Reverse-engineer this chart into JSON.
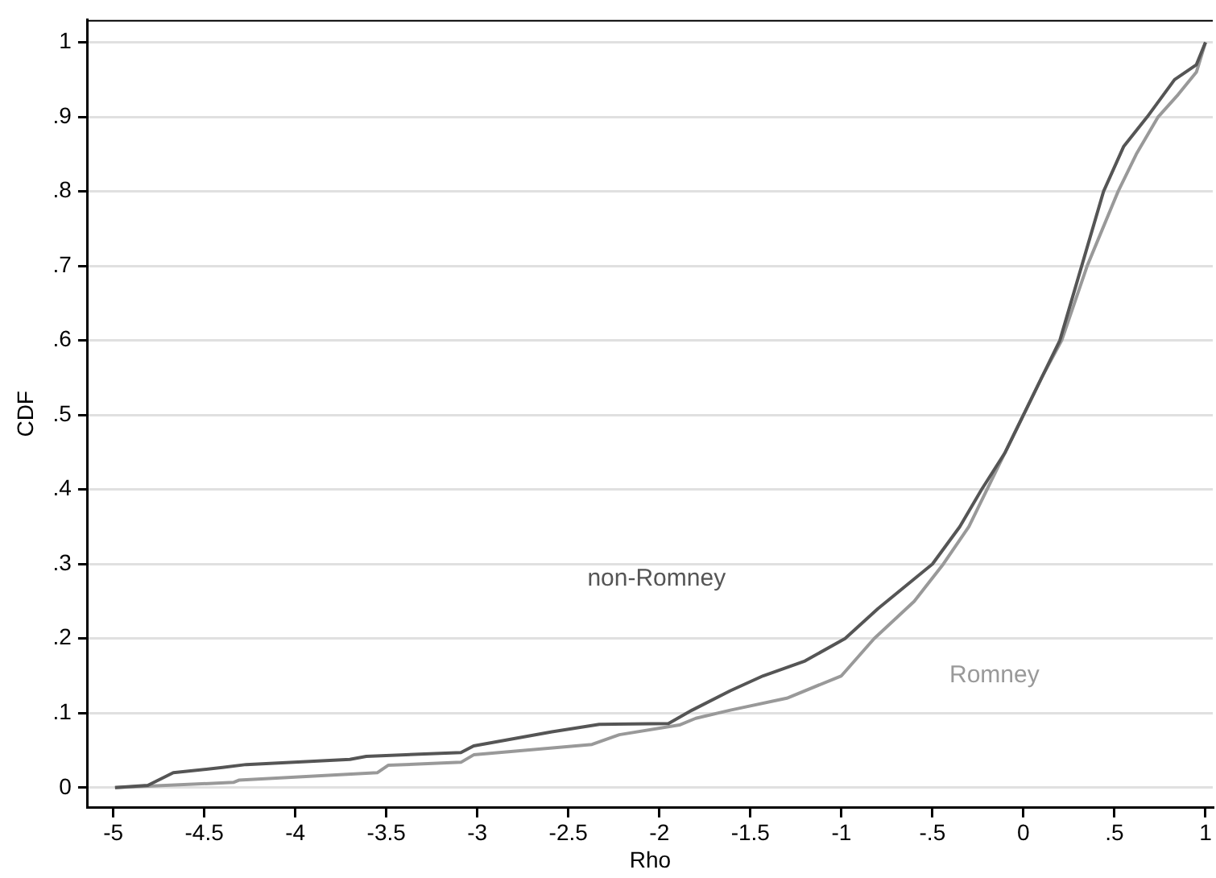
{
  "chart_data": {
    "type": "line",
    "xlabel": "Rho",
    "ylabel": "CDF",
    "xlim": [
      -5.14,
      1.04
    ],
    "xticks": [
      -5,
      -4.5,
      -4,
      -3.5,
      -3,
      -2.5,
      -2,
      -1.5,
      -1,
      {
        "value": -0.5,
        "label": "-.5"
      },
      0,
      {
        "value": 0.5,
        "label": ".5"
      },
      1
    ],
    "ylim": [
      -0.027,
      1.03
    ],
    "yticks": [
      0,
      {
        "value": 0.1,
        "label": ".1"
      },
      {
        "value": 0.2,
        "label": ".2"
      },
      {
        "value": 0.3,
        "label": ".3"
      },
      {
        "value": 0.4,
        "label": ".4"
      },
      {
        "value": 0.5,
        "label": ".5"
      },
      {
        "value": 0.6,
        "label": ".6"
      },
      {
        "value": 0.7,
        "label": ".7"
      },
      {
        "value": 0.8,
        "label": ".8"
      },
      {
        "value": 0.9,
        "label": ".9"
      },
      1
    ],
    "grid": "y",
    "legend": false,
    "marker": "none",
    "line_style": "solid",
    "series": [
      {
        "name": "non-Romney",
        "color": "#555555",
        "x": [
          -4.99,
          -4.81,
          -4.67,
          -4.4,
          -4.27,
          -3.7,
          -3.61,
          -3.09,
          -3.02,
          -2.59,
          -2.33,
          -1.95,
          -1.82,
          -1.61,
          -1.43,
          -1.2,
          -0.98,
          -0.8,
          -0.6,
          -0.5,
          -0.35,
          -0.23,
          -0.1,
          0.0,
          0.1,
          0.2,
          0.32,
          0.44,
          0.55,
          0.68,
          0.83,
          0.95,
          1.0
        ],
        "values": [
          0,
          0.003,
          0.02,
          0.027,
          0.031,
          0.038,
          0.042,
          0.047,
          0.056,
          0.075,
          0.085,
          0.086,
          0.104,
          0.13,
          0.15,
          0.17,
          0.2,
          0.24,
          0.28,
          0.3,
          0.35,
          0.4,
          0.45,
          0.5,
          0.55,
          0.6,
          0.7,
          0.8,
          0.86,
          0.9,
          0.95,
          0.97,
          1.0
        ]
      },
      {
        "name": "Romney",
        "color": "#999999",
        "x": [
          -4.99,
          -4.81,
          -4.34,
          -4.31,
          -3.55,
          -3.49,
          -3.09,
          -3.02,
          -2.37,
          -2.22,
          -1.89,
          -1.8,
          -1.61,
          -1.3,
          -1.0,
          -0.82,
          -0.6,
          -0.44,
          -0.3,
          -0.2,
          -0.1,
          0.0,
          0.1,
          0.21,
          0.35,
          0.52,
          0.62,
          0.74,
          0.85,
          0.95,
          1.0
        ],
        "values": [
          0,
          0.002,
          0.007,
          0.01,
          0.02,
          0.03,
          0.034,
          0.044,
          0.058,
          0.071,
          0.084,
          0.093,
          0.104,
          0.12,
          0.15,
          0.2,
          0.25,
          0.3,
          0.35,
          0.4,
          0.45,
          0.5,
          0.55,
          0.6,
          0.7,
          0.8,
          0.85,
          0.9,
          0.93,
          0.96,
          1.0
        ]
      }
    ]
  }
}
